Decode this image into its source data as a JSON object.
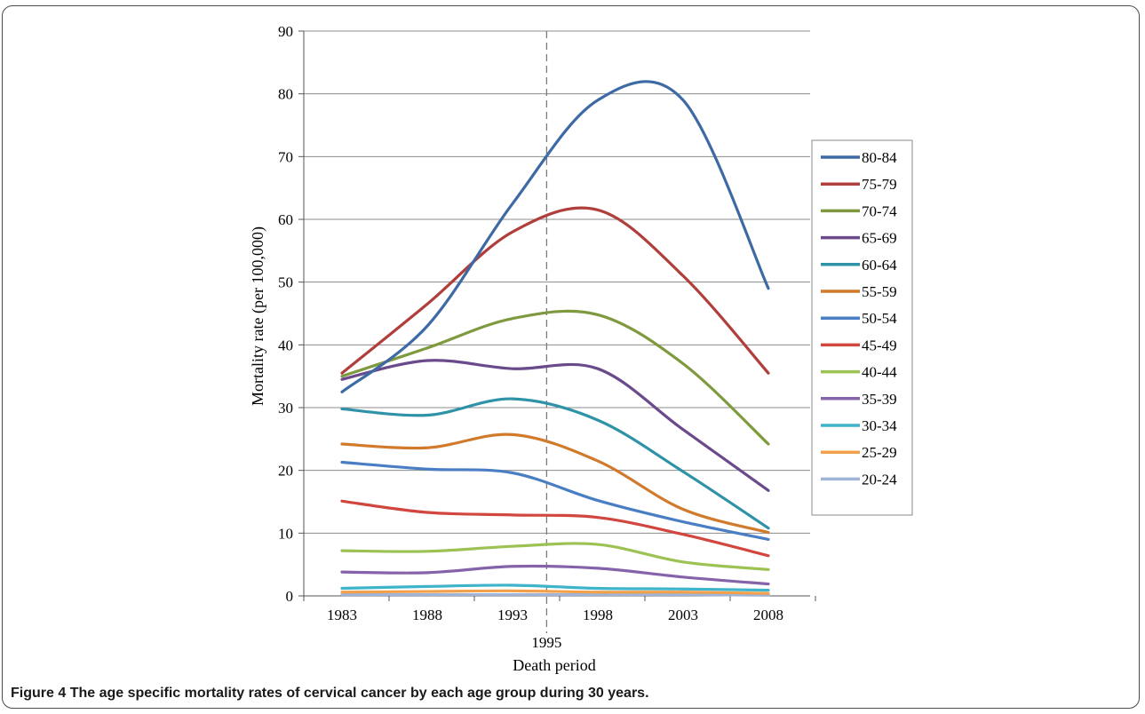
{
  "caption": {
    "label": "Figure 4",
    "text": "The age specific mortality rates of cervical cancer by each age group during 30 years."
  },
  "chart_data": {
    "type": "line",
    "title": "",
    "xlabel": "Death period",
    "ylabel": "Mortality rate (per 100,000)",
    "x": [
      1983,
      1988,
      1993,
      1998,
      2003,
      2008
    ],
    "x_tick_labels": [
      "1983",
      "1988",
      "1993",
      "1998",
      "2003",
      "2008"
    ],
    "ylim": [
      0,
      90
    ],
    "y_ticks": [
      0,
      10,
      20,
      30,
      40,
      50,
      60,
      70,
      80,
      90
    ],
    "y_tick_labels": [
      "0",
      "10",
      "20",
      "30",
      "40",
      "50",
      "60",
      "70",
      "80",
      "90"
    ],
    "grid": "horizontal",
    "reference_line": {
      "x": 1995,
      "label": "1995",
      "style": "dashed"
    },
    "legend": "right",
    "series": [
      {
        "name": "80-84",
        "color": "#3d6aa5",
        "values": [
          32.5,
          43,
          62.5,
          79,
          79,
          49
        ]
      },
      {
        "name": "75-79",
        "color": "#b03e3b",
        "values": [
          35.5,
          46.5,
          58,
          61.5,
          51,
          35.5
        ]
      },
      {
        "name": "70-74",
        "color": "#7f9a3e",
        "values": [
          35,
          39.5,
          44.2,
          44.8,
          37,
          24.2
        ]
      },
      {
        "name": "65-69",
        "color": "#6a4a8a",
        "values": [
          34.5,
          37.5,
          36.2,
          36.2,
          26.5,
          16.8
        ]
      },
      {
        "name": "60-64",
        "color": "#2f93a8",
        "values": [
          29.8,
          28.8,
          31.4,
          28,
          19.8,
          10.8
        ]
      },
      {
        "name": "55-59",
        "color": "#d27a2c",
        "values": [
          24.2,
          23.6,
          25.7,
          21.5,
          13.8,
          10.1
        ]
      },
      {
        "name": "50-54",
        "color": "#4a7ec4",
        "values": [
          21.3,
          20.2,
          19.6,
          15.2,
          11.8,
          9
        ]
      },
      {
        "name": "45-49",
        "color": "#d1463e",
        "values": [
          15.1,
          13.3,
          12.9,
          12.5,
          9.8,
          6.4
        ]
      },
      {
        "name": "40-44",
        "color": "#9cc254",
        "values": [
          7.2,
          7.1,
          7.9,
          8.2,
          5.4,
          4.2
        ]
      },
      {
        "name": "35-39",
        "color": "#8563aa",
        "values": [
          3.8,
          3.7,
          4.7,
          4.4,
          3,
          1.9
        ]
      },
      {
        "name": "30-34",
        "color": "#3fb3c9",
        "values": [
          1.2,
          1.5,
          1.7,
          1.2,
          1.1,
          0.9
        ]
      },
      {
        "name": "25-29",
        "color": "#f3a04a",
        "values": [
          0.6,
          0.7,
          0.8,
          0.6,
          0.6,
          0.4
        ]
      },
      {
        "name": "20-24",
        "color": "#9fb4d6",
        "values": [
          0.2,
          0.2,
          0.2,
          0.2,
          0.2,
          0.1
        ]
      }
    ]
  }
}
